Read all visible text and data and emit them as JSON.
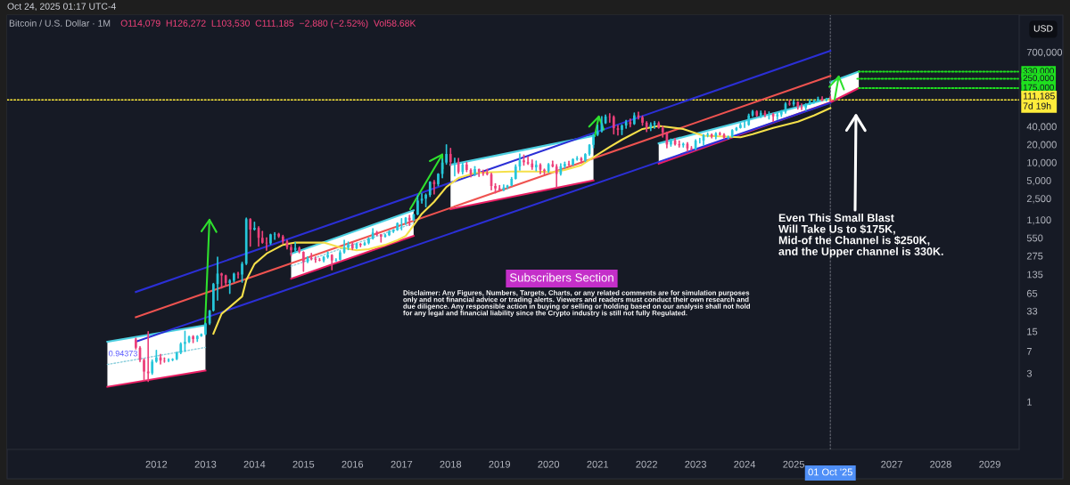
{
  "chart_data": {
    "type": "candlestick",
    "title": "Bitcoin / U.S. Dollar · 1M",
    "subtitle": "O114,079  H126,272  L103,530  C111,185  −2,880 (−2.52%)  Vol58.68K",
    "ylabel": "USD",
    "x": [
      "2011-08",
      "2011-09",
      "2011-10",
      "2011-11",
      "2011-12",
      "2012-01",
      "2012-02",
      "2012-03",
      "2012-04",
      "2012-05",
      "2012-06",
      "2012-07",
      "2012-08",
      "2012-09",
      "2012-10",
      "2012-11",
      "2012-12",
      "2013-01",
      "2013-02",
      "2013-03",
      "2013-04",
      "2013-05",
      "2013-06",
      "2013-07",
      "2013-08",
      "2013-09",
      "2013-10",
      "2013-11",
      "2013-12",
      "2014-01",
      "2014-02",
      "2014-03",
      "2014-04",
      "2014-05",
      "2014-06",
      "2014-07",
      "2014-08",
      "2014-09",
      "2014-10",
      "2014-11",
      "2014-12",
      "2015-01",
      "2015-02",
      "2015-03",
      "2015-04",
      "2015-05",
      "2015-06",
      "2015-07",
      "2015-08",
      "2015-09",
      "2015-10",
      "2015-11",
      "2015-12",
      "2016-01",
      "2016-02",
      "2016-03",
      "2016-04",
      "2016-05",
      "2016-06",
      "2016-07",
      "2016-08",
      "2016-09",
      "2016-10",
      "2016-11",
      "2016-12",
      "2017-01",
      "2017-02",
      "2017-03",
      "2017-04",
      "2017-05",
      "2017-06",
      "2017-07",
      "2017-08",
      "2017-09",
      "2017-10",
      "2017-11",
      "2017-12",
      "2018-01",
      "2018-02",
      "2018-03",
      "2018-04",
      "2018-05",
      "2018-06",
      "2018-07",
      "2018-08",
      "2018-09",
      "2018-10",
      "2018-11",
      "2018-12",
      "2019-01",
      "2019-02",
      "2019-03",
      "2019-04",
      "2019-05",
      "2019-06",
      "2019-07",
      "2019-08",
      "2019-09",
      "2019-10",
      "2019-11",
      "2019-12",
      "2020-01",
      "2020-02",
      "2020-03",
      "2020-04",
      "2020-05",
      "2020-06",
      "2020-07",
      "2020-08",
      "2020-09",
      "2020-10",
      "2020-11",
      "2020-12",
      "2021-01",
      "2021-02",
      "2021-03",
      "2021-04",
      "2021-05",
      "2021-06",
      "2021-07",
      "2021-08",
      "2021-09",
      "2021-10",
      "2021-11",
      "2021-12",
      "2022-01",
      "2022-02",
      "2022-03",
      "2022-04",
      "2022-05",
      "2022-06",
      "2022-07",
      "2022-08",
      "2022-09",
      "2022-10",
      "2022-11",
      "2022-12",
      "2023-01",
      "2023-02",
      "2023-03",
      "2023-04",
      "2023-05",
      "2023-06",
      "2023-07",
      "2023-08",
      "2023-09",
      "2023-10",
      "2023-11",
      "2023-12",
      "2024-01",
      "2024-02",
      "2024-03",
      "2024-04",
      "2024-05",
      "2024-06",
      "2024-07",
      "2024-08",
      "2024-09",
      "2024-10",
      "2024-11",
      "2024-12",
      "2025-01",
      "2025-02",
      "2025-03",
      "2025-04",
      "2025-05",
      "2025-06",
      "2025-07",
      "2025-08",
      "2025-09",
      "2025-10"
    ],
    "ohlc": [
      [
        11.0,
        11.5,
        7.6,
        8.0
      ],
      [
        8.0,
        8.3,
        4.7,
        5.0
      ],
      [
        5.0,
        5.2,
        2.3,
        3.2
      ],
      [
        3.2,
        14.8,
        2.2,
        3.0
      ],
      [
        3.0,
        5.0,
        2.9,
        4.7
      ],
      [
        4.7,
        7.2,
        4.6,
        5.5
      ],
      [
        5.5,
        6.2,
        4.3,
        4.9
      ],
      [
        4.9,
        5.4,
        4.6,
        4.85
      ],
      [
        4.85,
        5.2,
        4.7,
        5.0
      ],
      [
        5.0,
        5.2,
        4.9,
        5.15
      ],
      [
        5.15,
        6.7,
        5.1,
        6.6
      ],
      [
        6.6,
        9.6,
        6.4,
        9.3
      ],
      [
        9.3,
        15.0,
        7.0,
        10.0
      ],
      [
        10.0,
        12.5,
        9.8,
        12.3
      ],
      [
        12.3,
        12.7,
        9.8,
        11.2
      ],
      [
        11.2,
        12.7,
        10.3,
        12.5
      ],
      [
        12.5,
        13.6,
        12.5,
        13.4
      ],
      [
        13.4,
        20.6,
        13.2,
        20.4
      ],
      [
        20.4,
        33.5,
        19.6,
        33.4
      ],
      [
        33.4,
        95,
        33.0,
        93
      ],
      [
        93,
        260,
        50,
        139
      ],
      [
        139,
        140,
        80,
        129
      ],
      [
        129,
        130,
        88,
        97
      ],
      [
        97,
        110,
        65,
        106
      ],
      [
        106,
        140,
        101,
        138
      ],
      [
        138,
        145,
        117,
        134
      ],
      [
        134,
        214,
        100,
        203
      ],
      [
        203,
        1170,
        197,
        1130
      ],
      [
        1130,
        1150,
        400,
        755
      ],
      [
        755,
        1000,
        745,
        805
      ],
      [
        805,
        840,
        400,
        550
      ],
      [
        550,
        700,
        450,
        455
      ],
      [
        455,
        550,
        340,
        445
      ],
      [
        445,
        630,
        430,
        625
      ],
      [
        625,
        670,
        520,
        635
      ],
      [
        635,
        650,
        560,
        580
      ],
      [
        580,
        600,
        440,
        480
      ],
      [
        480,
        500,
        360,
        385
      ],
      [
        385,
        420,
        275,
        340
      ],
      [
        340,
        460,
        315,
        375
      ],
      [
        375,
        385,
        310,
        320
      ],
      [
        320,
        320,
        152,
        218
      ],
      [
        218,
        265,
        212,
        254
      ],
      [
        254,
        300,
        236,
        244
      ],
      [
        244,
        262,
        215,
        236
      ],
      [
        236,
        248,
        228,
        230
      ],
      [
        230,
        268,
        218,
        263
      ],
      [
        263,
        318,
        252,
        284
      ],
      [
        284,
        286,
        162,
        230
      ],
      [
        230,
        246,
        225,
        236
      ],
      [
        236,
        333,
        236,
        314
      ],
      [
        314,
        500,
        306,
        377
      ],
      [
        377,
        467,
        350,
        430
      ],
      [
        430,
        463,
        350,
        368
      ],
      [
        368,
        446,
        365,
        437
      ],
      [
        437,
        440,
        390,
        416
      ],
      [
        416,
        468,
        413,
        448
      ],
      [
        448,
        550,
        435,
        531
      ],
      [
        531,
        780,
        525,
        673
      ],
      [
        673,
        700,
        600,
        624
      ],
      [
        624,
        626,
        470,
        575
      ],
      [
        575,
        628,
        570,
        609
      ],
      [
        609,
        720,
        604,
        698
      ],
      [
        698,
        750,
        680,
        742
      ],
      [
        742,
        975,
        735,
        966
      ],
      [
        966,
        1150,
        750,
        970
      ],
      [
        970,
        1200,
        920,
        1190
      ],
      [
        1190,
        1300,
        890,
        1080
      ],
      [
        1080,
        1360,
        1070,
        1350
      ],
      [
        1350,
        2760,
        1340,
        2300
      ],
      [
        2300,
        3000,
        2100,
        2480
      ],
      [
        2480,
        2950,
        1830,
        2870
      ],
      [
        2870,
        4750,
        2700,
        4740
      ],
      [
        4740,
        4980,
        2970,
        4340
      ],
      [
        4340,
        6470,
        4110,
        6440
      ],
      [
        6440,
        11400,
        5560,
        9950
      ],
      [
        9950,
        19666,
        9400,
        13860
      ],
      [
        13860,
        17200,
        9000,
        10100
      ],
      [
        10100,
        11800,
        6000,
        10300
      ],
      [
        10300,
        11700,
        6600,
        6930
      ],
      [
        6930,
        9770,
        6450,
        9240
      ],
      [
        9240,
        9990,
        7030,
        7500
      ],
      [
        7500,
        7780,
        5780,
        6390
      ],
      [
        6390,
        8500,
        6070,
        7730
      ],
      [
        7730,
        7760,
        5880,
        7030
      ],
      [
        7030,
        7400,
        6100,
        6630
      ],
      [
        6630,
        7680,
        6200,
        6370
      ],
      [
        6370,
        6600,
        3500,
        4040
      ],
      [
        4040,
        4400,
        3120,
        3690
      ],
      [
        3690,
        4100,
        3350,
        3440
      ],
      [
        3440,
        4200,
        3380,
        3830
      ],
      [
        3830,
        4140,
        3680,
        4100
      ],
      [
        4100,
        5600,
        4080,
        5320
      ],
      [
        5320,
        9080,
        5310,
        8560
      ],
      [
        8560,
        13880,
        7500,
        10820
      ],
      [
        10820,
        13200,
        9070,
        10090
      ],
      [
        10090,
        12330,
        9330,
        9600
      ],
      [
        9600,
        10950,
        7710,
        8300
      ],
      [
        8300,
        10540,
        7300,
        9150
      ],
      [
        9150,
        9500,
        6500,
        7560
      ],
      [
        7560,
        7750,
        6430,
        7190
      ],
      [
        7190,
        9580,
        6870,
        9350
      ],
      [
        9350,
        10500,
        8450,
        8540
      ],
      [
        8540,
        9200,
        3850,
        6420
      ],
      [
        6420,
        9470,
        6150,
        8640
      ],
      [
        8640,
        10080,
        8120,
        9450
      ],
      [
        9450,
        10420,
        8900,
        9140
      ],
      [
        9140,
        11450,
        8980,
        11340
      ],
      [
        11340,
        12470,
        10900,
        11680
      ],
      [
        11680,
        12080,
        9880,
        10780
      ],
      [
        10780,
        14000,
        10390,
        13800
      ],
      [
        13800,
        19870,
        13230,
        19700
      ],
      [
        19700,
        29300,
        17600,
        28990
      ],
      [
        28990,
        41950,
        28130,
        33110
      ],
      [
        33110,
        58330,
        32300,
        45180
      ],
      [
        45180,
        61800,
        44950,
        58760
      ],
      [
        58760,
        64900,
        47000,
        57720
      ],
      [
        57720,
        59600,
        30000,
        37300
      ],
      [
        37300,
        41330,
        28800,
        35040
      ],
      [
        35040,
        42400,
        29300,
        41460
      ],
      [
        41460,
        50500,
        37300,
        47100
      ],
      [
        47100,
        52900,
        39600,
        43820
      ],
      [
        43820,
        67000,
        43280,
        61300
      ],
      [
        61300,
        69000,
        53300,
        56900
      ],
      [
        56900,
        59100,
        42000,
        46200
      ],
      [
        46200,
        48000,
        33000,
        38480
      ],
      [
        38480,
        45800,
        34300,
        43190
      ],
      [
        43190,
        48100,
        37200,
        45530
      ],
      [
        45530,
        47400,
        37600,
        37650
      ],
      [
        37650,
        40000,
        26700,
        31790
      ],
      [
        31790,
        31950,
        17600,
        19950
      ],
      [
        19950,
        24650,
        18780,
        23300
      ],
      [
        23300,
        25200,
        19600,
        20050
      ],
      [
        20050,
        22800,
        18150,
        19420
      ],
      [
        19420,
        20990,
        18200,
        20490
      ],
      [
        20490,
        21480,
        15480,
        17160
      ],
      [
        17160,
        18400,
        16260,
        16540
      ],
      [
        16540,
        23960,
        16500,
        23130
      ],
      [
        23130,
        25250,
        21350,
        23140
      ],
      [
        23140,
        29190,
        19600,
        28470
      ],
      [
        28470,
        31000,
        26950,
        29250
      ],
      [
        29250,
        29820,
        25810,
        27220
      ],
      [
        27220,
        31400,
        24800,
        30470
      ],
      [
        30470,
        31800,
        28860,
        29230
      ],
      [
        29230,
        30180,
        25170,
        25940
      ],
      [
        25940,
        27480,
        24900,
        26960
      ],
      [
        26960,
        35200,
        26550,
        34660
      ],
      [
        34660,
        38450,
        34100,
        37720
      ],
      [
        37720,
        44700,
        37620,
        42280
      ],
      [
        42280,
        48970,
        38500,
        42580
      ],
      [
        42580,
        64000,
        41880,
        61130
      ],
      [
        61130,
        73800,
        59000,
        71300
      ],
      [
        71300,
        72800,
        59200,
        60650
      ],
      [
        60650,
        71950,
        56500,
        67490
      ],
      [
        67490,
        72000,
        58400,
        62680
      ],
      [
        62680,
        70000,
        53500,
        64620
      ],
      [
        64620,
        65600,
        49000,
        58970
      ],
      [
        58970,
        66500,
        52600,
        63330
      ],
      [
        63330,
        73600,
        58900,
        70290
      ],
      [
        70290,
        99800,
        66800,
        96400
      ],
      [
        96400,
        108300,
        90500,
        93400
      ],
      [
        93400,
        109400,
        89200,
        102400
      ],
      [
        102400,
        102800,
        78200,
        84350
      ],
      [
        84350,
        95000,
        76600,
        82550
      ],
      [
        82550,
        95700,
        74500,
        94200
      ],
      [
        94200,
        111900,
        93400,
        104600
      ],
      [
        104600,
        110500,
        98200,
        107100
      ],
      [
        107100,
        123200,
        105100,
        115800
      ],
      [
        115800,
        124500,
        107300,
        108250
      ],
      [
        108250,
        117900,
        107300,
        114050
      ],
      [
        114079,
        126272,
        103530,
        111185
      ]
    ],
    "colors": [
      "#ec407a",
      "#ec407a",
      "#ec407a",
      "#ec407a",
      "#26c6da",
      "#26c6da",
      "#ec407a",
      "#ec407a",
      "#26c6da",
      "#26c6da",
      "#26c6da",
      "#26c6da",
      "#26c6da",
      "#26c6da",
      "#ec407a",
      "#26c6da",
      "#26c6da",
      "#26c6da",
      "#26c6da",
      "#26c6da",
      "#26c6da",
      "#ec407a",
      "#ec407a",
      "#26c6da",
      "#26c6da",
      "#ec407a",
      "#26c6da",
      "#26c6da",
      "#ec407a",
      "#26c6da",
      "#ec407a",
      "#ec407a",
      "#ec407a",
      "#26c6da",
      "#26c6da",
      "#ec407a",
      "#ec407a",
      "#ec407a",
      "#ec407a",
      "#26c6da",
      "#ec407a",
      "#ec407a",
      "#26c6da",
      "#ec407a",
      "#ec407a",
      "#ec407a",
      "#26c6da",
      "#26c6da",
      "#ec407a",
      "#26c6da",
      "#26c6da",
      "#26c6da",
      "#26c6da",
      "#ec407a",
      "#26c6da",
      "#ec407a",
      "#26c6da",
      "#26c6da",
      "#26c6da",
      "#ec407a",
      "#ec407a",
      "#26c6da",
      "#26c6da",
      "#26c6da",
      "#26c6da",
      "#26c6da",
      "#26c6da",
      "#ec407a",
      "#26c6da",
      "#26c6da",
      "#26c6da",
      "#26c6da",
      "#26c6da",
      "#ec407a",
      "#26c6da",
      "#26c6da",
      "#26c6da",
      "#ec407a",
      "#26c6da",
      "#ec407a",
      "#26c6da",
      "#ec407a",
      "#ec407a",
      "#26c6da",
      "#ec407a",
      "#ec407a",
      "#ec407a",
      "#ec407a",
      "#ec407a",
      "#ec407a",
      "#26c6da",
      "#26c6da",
      "#26c6da",
      "#26c6da",
      "#26c6da",
      "#ec407a",
      "#ec407a",
      "#ec407a",
      "#26c6da",
      "#ec407a",
      "#ec407a",
      "#26c6da",
      "#ec407a",
      "#ec407a",
      "#26c6da",
      "#26c6da",
      "#ec407a",
      "#26c6da",
      "#26c6da",
      "#ec407a",
      "#26c6da",
      "#26c6da",
      "#26c6da",
      "#26c6da",
      "#26c6da",
      "#26c6da",
      "#ec407a",
      "#ec407a",
      "#ec407a",
      "#26c6da",
      "#26c6da",
      "#ec407a",
      "#26c6da",
      "#ec407a",
      "#ec407a",
      "#ec407a",
      "#26c6da",
      "#26c6da",
      "#ec407a",
      "#ec407a",
      "#ec407a",
      "#26c6da",
      "#ec407a",
      "#ec407a",
      "#26c6da",
      "#ec407a",
      "#ec407a",
      "#26c6da",
      "#26c6da",
      "#26c6da",
      "#26c6da",
      "#ec407a",
      "#26c6da",
      "#ec407a",
      "#ec407a",
      "#26c6da",
      "#26c6da",
      "#26c6da",
      "#26c6da",
      "#26c6da",
      "#26c6da",
      "#26c6da",
      "#ec407a",
      "#26c6da",
      "#ec407a",
      "#26c6da",
      "#ec407a",
      "#26c6da",
      "#26c6da",
      "#26c6da",
      "#ec407a",
      "#26c6da",
      "#ec407a",
      "#ec407a",
      "#26c6da",
      "#26c6da",
      "#26c6da",
      "#26c6da",
      "#ec407a",
      "#26c6da",
      "#ec407a"
    ],
    "series": [
      {
        "type": "line",
        "x": [
          "2011-01",
          "2013-01"
        ],
        "values": [
          4.2,
          8.1
        ],
        "lower": [
          1.78,
          3.33
        ],
        "upper": [
          10.1,
          19.1
        ],
        "color": "#8ccfdc",
        "line_style": "dotted"
      },
      {
        "type": "line",
        "x": [
          "2011-01",
          "2013-01"
        ],
        "values": [
          10.1,
          19.1
        ],
        "color": "#4dd0e1"
      },
      {
        "type": "line",
        "x": [
          "2011-01",
          "2013-01"
        ],
        "values": [
          1.78,
          3.33
        ],
        "color": "#e91e63"
      },
      {
        "type": "line",
        "x": [
          "2014-10",
          "2017-04"
        ],
        "values": [
          184,
          965
        ],
        "lower": [
          114,
          590
        ],
        "upper": [
          298,
          1580
        ],
        "color": "#8ccfdc",
        "line_style": "dotted"
      },
      {
        "type": "line",
        "x": [
          "2014-10",
          "2017-04"
        ],
        "values": [
          298,
          1580
        ],
        "color": "#4dd0e1"
      },
      {
        "type": "line",
        "x": [
          "2014-10",
          "2017-04"
        ],
        "values": [
          114,
          590
        ],
        "color": "#e91e63"
      },
      {
        "type": "line",
        "x": [
          "2018-01",
          "2020-12"
        ],
        "values": [
          9140,
          27900
        ],
        "lower": [
          1660,
          5000
        ],
        "upper": [
          9140,
          27900
        ],
        "color": "#4dd0e1"
      },
      {
        "type": "line",
        "x": [
          "2018-01",
          "2020-12"
        ],
        "values": [
          1660,
          5000
        ],
        "color": "#e91e63"
      },
      {
        "type": "line",
        "x": [
          "2022-04",
          "2025-10"
        ],
        "values": [
          20800,
          118000
        ],
        "lower": [
          9570,
          101000
        ],
        "upper": [
          20800,
          118000
        ],
        "color": "#4dd0e1"
      },
      {
        "type": "line",
        "x": [
          "2025-10",
          "2026-05"
        ],
        "values": [
          220000,
          330000
        ],
        "lower": [
          101000,
          175000
        ],
        "upper": [
          220000,
          330000
        ],
        "color": "#4dd0e1"
      },
      {
        "type": "line",
        "x": [
          "2022-04",
          "2025-10",
          "2026-05"
        ],
        "values": [
          9570,
          101000,
          175000
        ],
        "color": "#e91e63"
      },
      {
        "type": "line",
        "x": [
          "2011-08",
          "2025-10"
        ],
        "values": [
          68.5,
          736000
        ],
        "color": "#2b2fd6"
      },
      {
        "type": "line",
        "x": [
          "2011-08",
          "2025-10"
        ],
        "values": [
          25.9,
          279000
        ],
        "color": "#ef5350"
      },
      {
        "type": "line",
        "x": [
          "2011-08",
          "2025-10"
        ],
        "values": [
          10.1,
          99000
        ],
        "color": "#2b2fd6"
      },
      {
        "type": "line",
        "x": [
          "2013-03",
          "2013-05",
          "2013-10",
          "2013-11",
          "2014-01",
          "2014-04",
          "2014-08",
          "2014-11",
          "2015-06",
          "2015-10",
          "2016-02",
          "2016-05",
          "2016-09",
          "2016-12",
          "2017-02",
          "2017-04",
          "2017-06",
          "2017-09",
          "2017-12",
          "2018-03",
          "2018-07",
          "2018-11",
          "2019-04",
          "2019-10",
          "2020-02",
          "2020-05",
          "2020-09",
          "2020-12",
          "2021-04",
          "2021-07",
          "2021-12",
          "2022-04",
          "2022-10",
          "2023-03",
          "2023-07",
          "2023-12",
          "2024-03",
          "2024-08",
          "2025-02",
          "2025-06",
          "2025-10"
        ],
        "values": [
          13.8,
          29.5,
          57.6,
          108,
          201,
          300,
          420,
          460,
          458,
          380,
          340,
          355,
          420,
          500,
          590,
          890,
          1390,
          2200,
          3900,
          5480,
          6650,
          6890,
          7050,
          7050,
          6890,
          7480,
          9000,
          12300,
          18200,
          24000,
          36300,
          40800,
          36300,
          28000,
          27300,
          26300,
          29700,
          37800,
          48000,
          61000,
          81000
        ],
        "color": "#f5e04a"
      },
      {
        "type": "line",
        "x": [
          "2026-05",
          "2029-08"
        ],
        "values": [
          330000,
          330000
        ],
        "color": "#1fe01f",
        "line_style": "dotted",
        "value_labels": [
          null,
          "330,000"
        ]
      },
      {
        "type": "line",
        "x": [
          "2026-04-20",
          "2029-08"
        ],
        "values": [
          250000,
          250000
        ],
        "color": "#1fe01f",
        "line_style": "dotted",
        "value_labels": [
          null,
          "250,000"
        ]
      },
      {
        "type": "line",
        "x": [
          "2026-05",
          "2029-08"
        ],
        "values": [
          175000,
          175000
        ],
        "color": "#1fe01f",
        "line_style": "dotted",
        "value_labels": [
          null,
          "175,000"
        ]
      }
    ],
    "ref_lines": [
      {
        "axis": "y",
        "value": 111185,
        "label": "111,185\n7d 19h",
        "color": "#ffeb3b",
        "line_style": "dotted"
      },
      {
        "axis": "x",
        "value": "2025-10-01",
        "label": "01 Oct '25",
        "color": "#5d606b",
        "line_style": "dotted"
      }
    ],
    "annotations": [
      "Oct 24, 2025 01:17 UTC-4",
      "Subscribers Section",
      "Disclaimer: Any Figures, Numbers, Targets, Charts, or any related comments are for simulation purposes\nonly and not financial advice or trading alerts. Viewers and readers must conduct their own research and\ndue diligence. Any responsible action in buying or selling or holding based on our analysis shall not hold\nfor any legal and financial liability since the Crypto industry is still not fully Regulated.",
      "0.94373",
      "Even This Small Blast\nWill Take Us to $175K,\nMid-of the Channel is $250K,\nand the Upper channel is 330K."
    ],
    "log": "y",
    "ylim": [
      0.16,
      2900000
    ],
    "yticks": [
      1,
      3,
      7,
      15,
      33,
      65,
      135,
      275,
      550,
      {
        "value": 1100,
        "label": "1,100"
      },
      {
        "value": 2500,
        "label": "2,500"
      },
      {
        "value": 5000,
        "label": "5,000"
      },
      {
        "value": 10000,
        "label": "10,000"
      },
      {
        "value": 20000,
        "label": "20,000"
      },
      {
        "value": 40000,
        "label": "40,000"
      },
      {
        "value": 700000,
        "label": "700,000"
      }
    ],
    "xlim": [
      "2008-12-15",
      "2029-08-08"
    ],
    "xticks": [
      "2012",
      "2013",
      "2014",
      "2015",
      "2016",
      "2017",
      "2018",
      "2019",
      "2020",
      "2021",
      "2022",
      "2023",
      "2024",
      "2025",
      "2027",
      "2028",
      "2029"
    ]
  }
}
